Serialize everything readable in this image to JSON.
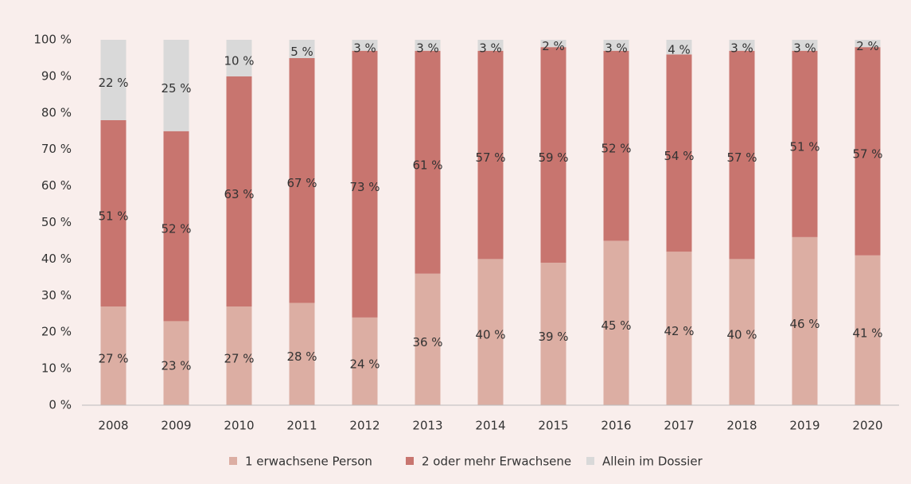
{
  "chart_data": {
    "type": "stacked_bar",
    "categories": [
      "2008",
      "2009",
      "2010",
      "2011",
      "2012",
      "2013",
      "2014",
      "2015",
      "2016",
      "2017",
      "2018",
      "2019",
      "2020"
    ],
    "series": [
      {
        "name": "1 erwachsene Person",
        "color": "#dcaea3",
        "values": [
          27,
          23,
          27,
          28,
          24,
          36,
          40,
          39,
          45,
          42,
          40,
          46,
          41
        ],
        "value_labels": [
          "27 %",
          "23 %",
          "27 %",
          "28 %",
          "24 %",
          "36 %",
          "40 %",
          "39 %",
          "45 %",
          "42 %",
          "40 %",
          "46 %",
          "41 %"
        ]
      },
      {
        "name": "2 oder mehr Erwachsene",
        "color": "#c8756f",
        "values": [
          51,
          52,
          63,
          67,
          73,
          61,
          57,
          59,
          52,
          54,
          57,
          51,
          57
        ],
        "value_labels": [
          "51 %",
          "52 %",
          "63 %",
          "67 %",
          "73 %",
          "61 %",
          "57 %",
          "59 %",
          "52 %",
          "54 %",
          "57 %",
          "51 %",
          "57 %"
        ]
      },
      {
        "name": "Allein im Dossier",
        "color": "#d9d9d9",
        "values": [
          22,
          25,
          10,
          5,
          3,
          3,
          3,
          2,
          3,
          4,
          3,
          3,
          2
        ],
        "value_labels": [
          "22 %",
          "25 %",
          "10 %",
          "5 %",
          "3 %",
          "3 %",
          "3 %",
          "2 %",
          "3 %",
          "4 %",
          "3 %",
          "3 %",
          "2 %"
        ]
      }
    ],
    "ylim": [
      0,
      100
    ],
    "yticks": [
      {
        "value": 0,
        "label": "0 %"
      },
      {
        "value": 10,
        "label": "10 %"
      },
      {
        "value": 20,
        "label": "20 %"
      },
      {
        "value": 30,
        "label": "30 %"
      },
      {
        "value": 40,
        "label": "40 %"
      },
      {
        "value": 50,
        "label": "50 %"
      },
      {
        "value": 60,
        "label": "60 %"
      },
      {
        "value": 70,
        "label": "70 %"
      },
      {
        "value": 80,
        "label": "80 %"
      },
      {
        "value": 90,
        "label": "90 %"
      },
      {
        "value": 100,
        "label": "100 %"
      }
    ],
    "legend": "bottom"
  }
}
